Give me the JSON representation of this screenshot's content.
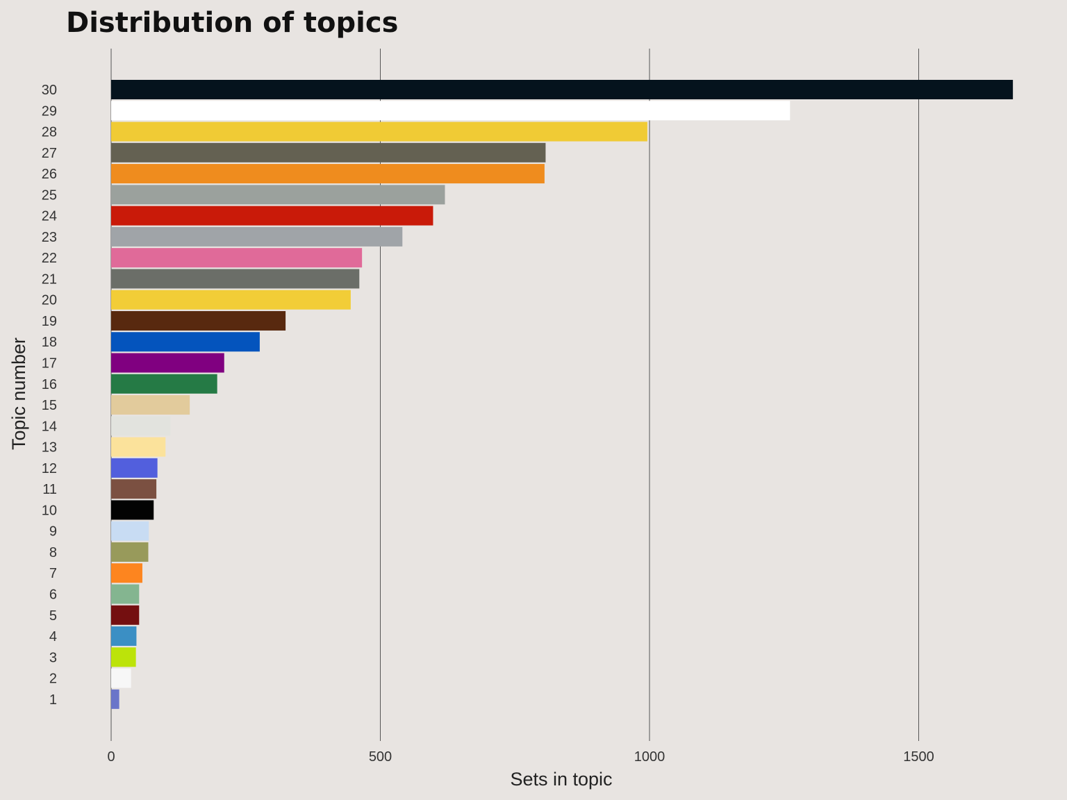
{
  "chart_data": {
    "type": "bar",
    "orientation": "horizontal",
    "title": "Distribution of topics",
    "xlabel": "Sets in topic",
    "ylabel": "Topic number",
    "xlim": [
      0,
      1750
    ],
    "xticks": [
      0,
      500,
      1000,
      1500
    ],
    "grid": true,
    "categories": [
      "1",
      "2",
      "3",
      "4",
      "5",
      "6",
      "7",
      "8",
      "9",
      "10",
      "11",
      "12",
      "13",
      "14",
      "15",
      "16",
      "17",
      "18",
      "19",
      "20",
      "21",
      "22",
      "23",
      "24",
      "25",
      "26",
      "27",
      "28",
      "29",
      "30"
    ],
    "values": [
      15,
      37,
      46,
      47,
      52,
      52,
      58,
      69,
      70,
      79,
      84,
      86,
      101,
      110,
      146,
      197,
      210,
      276,
      324,
      445,
      461,
      466,
      541,
      598,
      620,
      805,
      807,
      996,
      1261,
      1675
    ],
    "colors": [
      "#6a75c9",
      "#f7f7f7",
      "#bce30a",
      "#3b8fc4",
      "#740f10",
      "#84b590",
      "#fd851f",
      "#989a5b",
      "#c8dcf3",
      "#030303",
      "#7b5041",
      "#525fdd",
      "#fbe29b",
      "#e2e3de",
      "#e2cb9c",
      "#257a45",
      "#800080",
      "#0454bd",
      "#58290f",
      "#f2cd37",
      "#6b6e68",
      "#e06a99",
      "#a0a4a8",
      "#c91a09",
      "#9ba19d",
      "#ef8c1e",
      "#646152",
      "#f0cb35",
      "#ffffff",
      "#05131d"
    ]
  }
}
